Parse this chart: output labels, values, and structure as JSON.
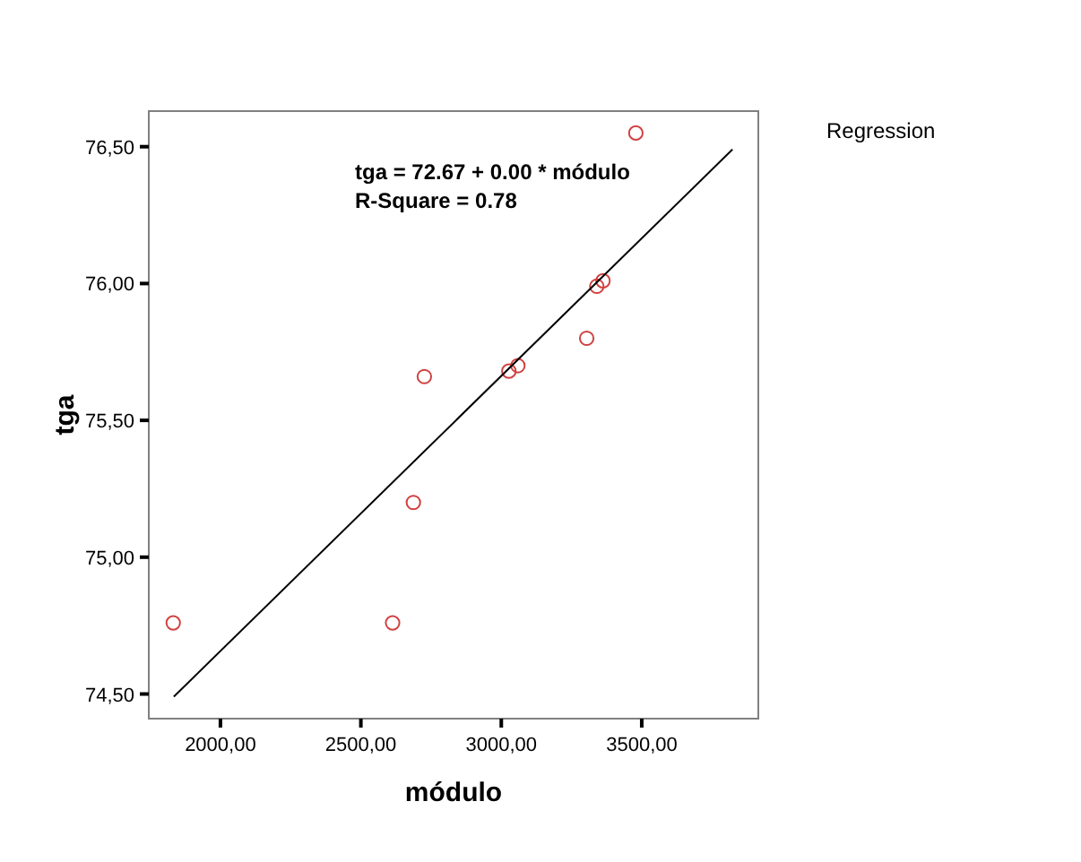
{
  "chart_data": {
    "type": "scatter",
    "xlabel": "módulo",
    "ylabel": "tga",
    "legend_title": "Regression",
    "annotations": [
      "tga = 72.67 + 0.00 * módulo",
      "R-Square = 0.78"
    ],
    "xlim": [
      1745,
      3915
    ],
    "ylim": [
      74.41,
      76.63
    ],
    "xticks": [
      {
        "value": 2000,
        "label": "2000,00"
      },
      {
        "value": 2500,
        "label": "2500,00"
      },
      {
        "value": 3000,
        "label": "3000,00"
      },
      {
        "value": 3500,
        "label": "3500,00"
      }
    ],
    "yticks": [
      {
        "value": 74.5,
        "label": "74,50"
      },
      {
        "value": 75,
        "label": "75,00"
      },
      {
        "value": 75.5,
        "label": "75,50"
      },
      {
        "value": 76,
        "label": "76,00"
      },
      {
        "value": 76.5,
        "label": "76,50"
      }
    ],
    "marker": "circle",
    "grid": false,
    "series": [
      {
        "color": "#d04040",
        "x": [
          1832,
          2613,
          2687,
          2726,
          3027,
          3059,
          3304,
          3340,
          3362,
          3479
        ],
        "values": [
          74.76,
          74.76,
          75.2,
          75.66,
          75.68,
          75.7,
          75.8,
          75.99,
          76.01,
          76.55
        ]
      },
      {
        "type": "line",
        "marker": "none",
        "color": "#000000",
        "x": [
          1834,
          3823
        ],
        "values": [
          74.49,
          76.49
        ]
      }
    ]
  }
}
